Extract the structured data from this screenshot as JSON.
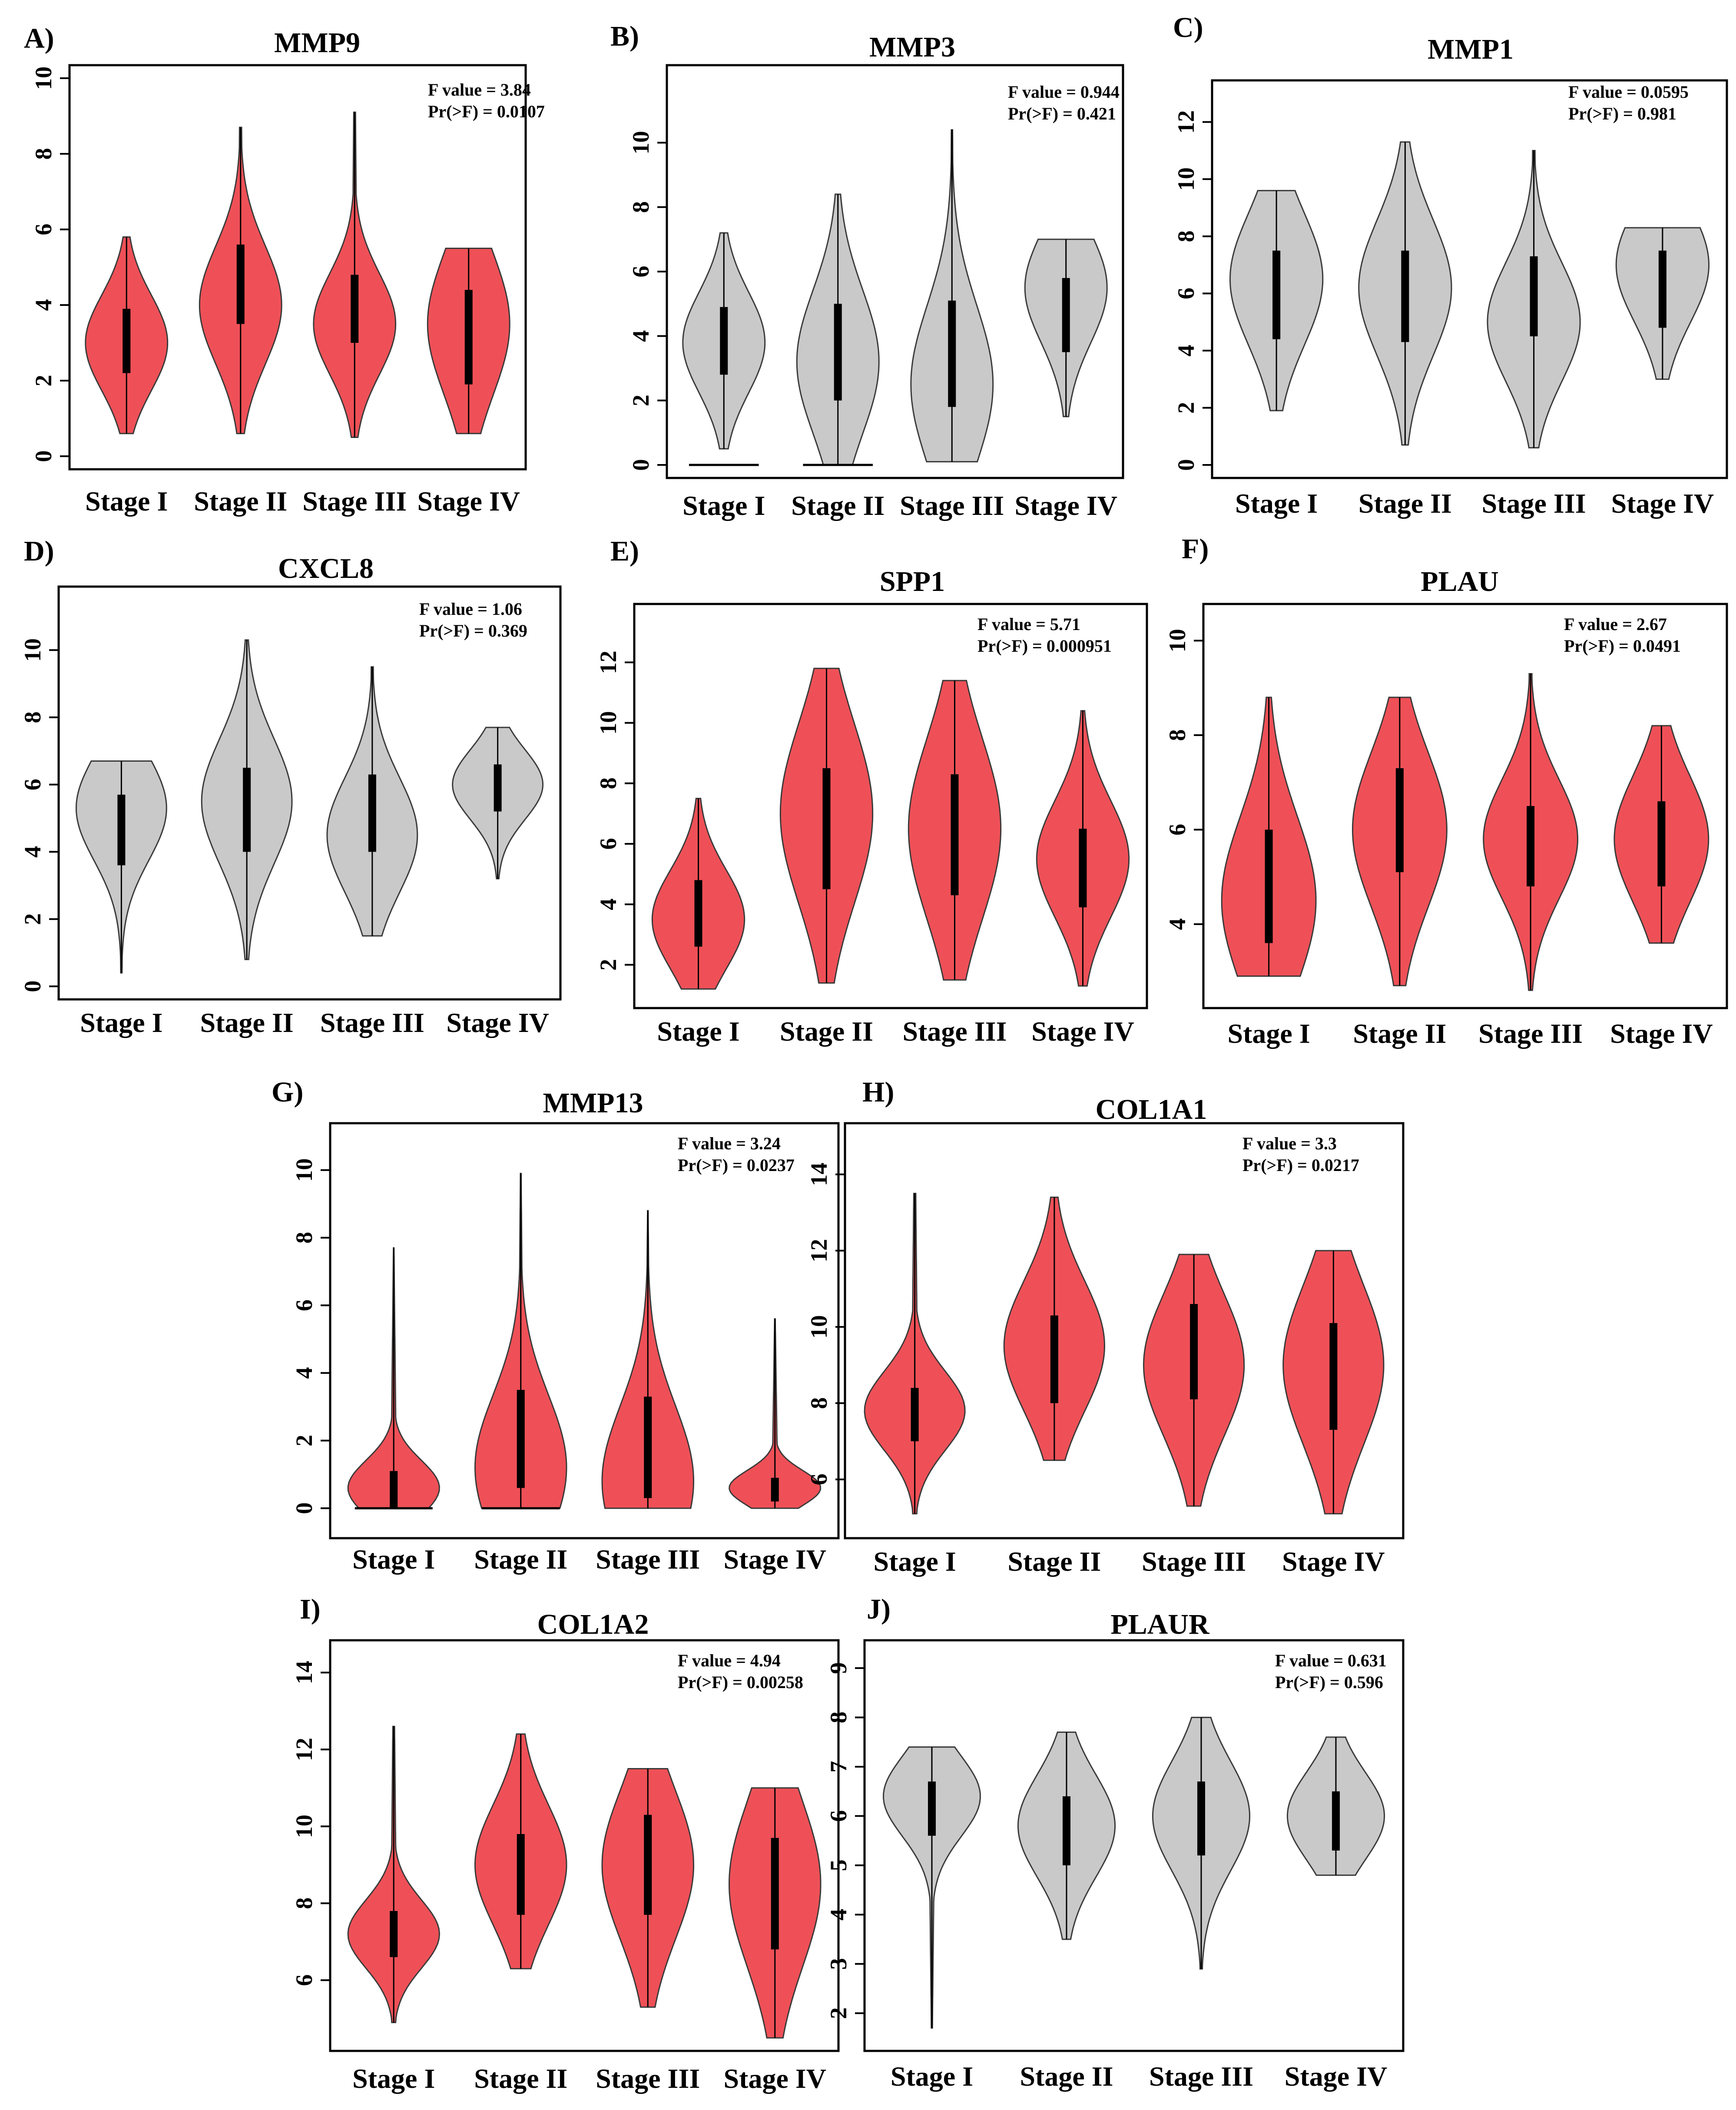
{
  "figure": {
    "colors": {
      "significant": "#ef5057",
      "nonsignificant": "#c9c9c9",
      "outline": "#3a3a3a",
      "box": "#000000"
    }
  },
  "chart_data": [
    {
      "letter": "A)",
      "type": "violin",
      "title": "MMP9",
      "categories": [
        "Stage I",
        "Stage II",
        "Stage III",
        "Stage IV"
      ],
      "ylim": [
        0,
        10
      ],
      "yticks": [
        0,
        2,
        4,
        6,
        8,
        10
      ],
      "ylabel": "",
      "xlabel": "",
      "grid": false,
      "stats": {
        "f_line": "F value = 3.84",
        "p_line": "Pr(>F)  = 0.0107"
      },
      "significant": true,
      "series": [
        {
          "name": "Stage I",
          "min": 0.6,
          "q1": 2.2,
          "median": 3.2,
          "q3": 3.9,
          "max": 5.8,
          "mode": 3.0
        },
        {
          "name": "Stage II",
          "min": 0.6,
          "q1": 3.5,
          "median": 4.5,
          "q3": 5.6,
          "max": 8.7,
          "mode": 4.0
        },
        {
          "name": "Stage III",
          "min": 0.5,
          "q1": 3.0,
          "median": 4.0,
          "q3": 4.8,
          "max": 9.1,
          "mode": 3.5
        },
        {
          "name": "Stage IV",
          "min": 0.6,
          "q1": 1.9,
          "median": 3.2,
          "q3": 4.4,
          "max": 5.5,
          "mode": 3.5
        }
      ]
    },
    {
      "letter": "B)",
      "type": "violin",
      "title": "MMP3",
      "categories": [
        "Stage I",
        "Stage II",
        "Stage III",
        "Stage IV"
      ],
      "ylim": [
        0,
        12
      ],
      "yticks": [
        0,
        2,
        4,
        6,
        8,
        10
      ],
      "ylabel": "",
      "xlabel": "",
      "grid": false,
      "stats": {
        "f_line": "F value = 0.944",
        "p_line": "Pr(>F)  = 0.421"
      },
      "significant": false,
      "series": [
        {
          "name": "Stage I",
          "min": 0.5,
          "q1": 2.8,
          "median": 4.0,
          "q3": 4.9,
          "max": 7.2,
          "mode": 3.8,
          "zeroline": true
        },
        {
          "name": "Stage II",
          "min": 0.0,
          "q1": 2.0,
          "median": 3.5,
          "q3": 5.0,
          "max": 8.4,
          "mode": 3.2,
          "zeroline": true
        },
        {
          "name": "Stage III",
          "min": 0.1,
          "q1": 1.8,
          "median": 3.5,
          "q3": 5.1,
          "max": 10.4,
          "mode": 2.5
        },
        {
          "name": "Stage IV",
          "min": 1.5,
          "q1": 3.5,
          "median": 4.8,
          "q3": 5.8,
          "max": 7.0,
          "mode": 5.5
        }
      ]
    },
    {
      "letter": "C)",
      "type": "violin",
      "title": "MMP1",
      "categories": [
        "Stage I",
        "Stage II",
        "Stage III",
        "Stage IV"
      ],
      "ylim": [
        0,
        13
      ],
      "yticks": [
        0,
        2,
        4,
        6,
        8,
        10,
        12
      ],
      "ylabel": "",
      "xlabel": "",
      "grid": false,
      "stats": {
        "f_line": "F value = 0.0595",
        "p_line": "Pr(>F)  = 0.981"
      },
      "significant": false,
      "series": [
        {
          "name": "Stage I",
          "min": 1.9,
          "q1": 4.4,
          "median": 6.0,
          "q3": 7.5,
          "max": 9.6,
          "mode": 6.5
        },
        {
          "name": "Stage II",
          "min": 0.7,
          "q1": 4.3,
          "median": 6.0,
          "q3": 7.5,
          "max": 11.3,
          "mode": 6.2
        },
        {
          "name": "Stage III",
          "min": 0.6,
          "q1": 4.5,
          "median": 5.9,
          "q3": 7.3,
          "max": 11.0,
          "mode": 5.0
        },
        {
          "name": "Stage IV",
          "min": 3.0,
          "q1": 4.8,
          "median": 6.1,
          "q3": 7.5,
          "max": 8.3,
          "mode": 7.0
        }
      ]
    },
    {
      "letter": "D)",
      "type": "violin",
      "title": "CXCL8",
      "categories": [
        "Stage I",
        "Stage II",
        "Stage III",
        "Stage IV"
      ],
      "ylim": [
        0,
        11.5
      ],
      "yticks": [
        0,
        2,
        4,
        6,
        8,
        10
      ],
      "ylabel": "",
      "xlabel": "",
      "grid": false,
      "stats": {
        "f_line": "F value = 1.06",
        "p_line": "Pr(>F)  = 0.369"
      },
      "significant": false,
      "series": [
        {
          "name": "Stage I",
          "min": 0.4,
          "q1": 3.6,
          "median": 4.7,
          "q3": 5.7,
          "max": 6.7,
          "mode": 5.3
        },
        {
          "name": "Stage II",
          "min": 0.8,
          "q1": 4.0,
          "median": 5.3,
          "q3": 6.5,
          "max": 10.3,
          "mode": 5.5
        },
        {
          "name": "Stage III",
          "min": 1.5,
          "q1": 4.0,
          "median": 5.2,
          "q3": 6.3,
          "max": 9.5,
          "mode": 4.5
        },
        {
          "name": "Stage IV",
          "min": 3.2,
          "q1": 5.2,
          "median": 5.9,
          "q3": 6.6,
          "max": 7.7,
          "mode": 6.0
        }
      ]
    },
    {
      "letter": "E)",
      "type": "violin",
      "title": "SPP1",
      "categories": [
        "Stage I",
        "Stage II",
        "Stage III",
        "Stage IV"
      ],
      "ylim": [
        1,
        13.5
      ],
      "yticks": [
        2,
        4,
        6,
        8,
        10,
        12
      ],
      "ylabel": "",
      "xlabel": "",
      "grid": false,
      "stats": {
        "f_line": "F value = 5.71",
        "p_line": "Pr(>F)  = 0.000951"
      },
      "significant": true,
      "series": [
        {
          "name": "Stage I",
          "min": 1.2,
          "q1": 2.6,
          "median": 3.6,
          "q3": 4.8,
          "max": 7.5,
          "mode": 3.5
        },
        {
          "name": "Stage II",
          "min": 1.4,
          "q1": 4.5,
          "median": 6.5,
          "q3": 8.5,
          "max": 11.8,
          "mode": 7.0
        },
        {
          "name": "Stage III",
          "min": 1.5,
          "q1": 4.3,
          "median": 6.2,
          "q3": 8.3,
          "max": 11.4,
          "mode": 6.5
        },
        {
          "name": "Stage IV",
          "min": 1.3,
          "q1": 3.9,
          "median": 5.2,
          "q3": 6.5,
          "max": 10.4,
          "mode": 5.5
        }
      ]
    },
    {
      "letter": "F)",
      "type": "violin",
      "title": "PLAU",
      "categories": [
        "Stage I",
        "Stage II",
        "Stage III",
        "Stage IV"
      ],
      "ylim": [
        2.5,
        10.5
      ],
      "yticks": [
        4,
        6,
        8,
        10
      ],
      "ylabel": "",
      "xlabel": "",
      "grid": false,
      "stats": {
        "f_line": "F value = 2.67",
        "p_line": "Pr(>F)  = 0.0491"
      },
      "significant": true,
      "series": [
        {
          "name": "Stage I",
          "min": 2.9,
          "q1": 3.6,
          "median": 4.7,
          "q3": 6.0,
          "max": 8.8,
          "mode": 4.5
        },
        {
          "name": "Stage II",
          "min": 2.7,
          "q1": 5.1,
          "median": 6.2,
          "q3": 7.3,
          "max": 8.8,
          "mode": 6.0
        },
        {
          "name": "Stage III",
          "min": 2.6,
          "q1": 4.8,
          "median": 5.7,
          "q3": 6.5,
          "max": 9.3,
          "mode": 5.8
        },
        {
          "name": "Stage IV",
          "min": 3.6,
          "q1": 4.8,
          "median": 5.7,
          "q3": 6.6,
          "max": 8.2,
          "mode": 5.8
        }
      ]
    },
    {
      "letter": "G)",
      "type": "violin",
      "title": "MMP13",
      "categories": [
        "Stage I",
        "Stage II",
        "Stage III",
        "Stage IV"
      ],
      "ylim": [
        -0.5,
        11
      ],
      "yticks": [
        0,
        2,
        4,
        6,
        8,
        10
      ],
      "ylabel": "",
      "xlabel": "",
      "grid": false,
      "stats": {
        "f_line": "F value = 3.24",
        "p_line": "Pr(>F)  = 0.0237"
      },
      "significant": true,
      "series": [
        {
          "name": "Stage I",
          "min": 0.0,
          "q1": 0.0,
          "median": 0.3,
          "q3": 1.1,
          "max": 7.7,
          "mode": 0.6,
          "zeroline": true
        },
        {
          "name": "Stage II",
          "min": 0.0,
          "q1": 0.6,
          "median": 1.8,
          "q3": 3.5,
          "max": 9.9,
          "mode": 1.2,
          "zeroline": true
        },
        {
          "name": "Stage III",
          "min": 0.0,
          "q1": 0.3,
          "median": 1.5,
          "q3": 3.3,
          "max": 8.8,
          "mode": 0.8
        },
        {
          "name": "Stage IV",
          "min": 0.0,
          "q1": 0.2,
          "median": 0.5,
          "q3": 0.9,
          "max": 5.6,
          "mode": 0.6
        }
      ]
    },
    {
      "letter": "H)",
      "type": "violin",
      "title": "COL1A1",
      "categories": [
        "Stage I",
        "Stage II",
        "Stage III",
        "Stage IV"
      ],
      "ylim": [
        4.8,
        15
      ],
      "yticks": [
        6,
        8,
        10,
        12,
        14
      ],
      "ylabel": "",
      "xlabel": "",
      "grid": false,
      "stats": {
        "f_line": "F value = 3.3",
        "p_line": "Pr(>F)  = 0.0217"
      },
      "significant": true,
      "series": [
        {
          "name": "Stage I",
          "min": 5.1,
          "q1": 7.0,
          "median": 7.8,
          "q3": 8.4,
          "max": 13.5,
          "mode": 7.8
        },
        {
          "name": "Stage II",
          "min": 6.5,
          "q1": 8.0,
          "median": 9.0,
          "q3": 10.3,
          "max": 13.4,
          "mode": 9.5
        },
        {
          "name": "Stage III",
          "min": 5.3,
          "q1": 8.1,
          "median": 9.3,
          "q3": 10.6,
          "max": 11.9,
          "mode": 9.0
        },
        {
          "name": "Stage IV",
          "min": 5.1,
          "q1": 7.3,
          "median": 8.6,
          "q3": 10.1,
          "max": 12.0,
          "mode": 9.0
        }
      ]
    },
    {
      "letter": "I)",
      "type": "violin",
      "title": "COL1A2",
      "categories": [
        "Stage I",
        "Stage II",
        "Stage III",
        "Stage IV"
      ],
      "ylim": [
        4.5,
        14.5
      ],
      "yticks": [
        6,
        8,
        10,
        12,
        14
      ],
      "ylabel": "",
      "xlabel": "",
      "grid": false,
      "stats": {
        "f_line": "F value = 4.94",
        "p_line": "Pr(>F)  = 0.00258"
      },
      "significant": true,
      "series": [
        {
          "name": "Stage I",
          "min": 4.9,
          "q1": 6.6,
          "median": 7.2,
          "q3": 7.8,
          "max": 12.6,
          "mode": 7.2
        },
        {
          "name": "Stage II",
          "min": 6.3,
          "q1": 7.7,
          "median": 8.8,
          "q3": 9.8,
          "max": 12.4,
          "mode": 9.0
        },
        {
          "name": "Stage III",
          "min": 5.3,
          "q1": 7.7,
          "median": 8.8,
          "q3": 10.3,
          "max": 11.5,
          "mode": 9.0
        },
        {
          "name": "Stage IV",
          "min": 4.5,
          "q1": 6.8,
          "median": 8.0,
          "q3": 9.7,
          "max": 11.0,
          "mode": 8.5
        }
      ]
    },
    {
      "letter": "J)",
      "type": "violin",
      "title": "PLAUR",
      "categories": [
        "Stage I",
        "Stage II",
        "Stage III",
        "Stage IV"
      ],
      "ylim": [
        1.5,
        9.3
      ],
      "yticks": [
        2,
        3,
        4,
        5,
        6,
        7,
        8,
        9
      ],
      "ylabel": "",
      "xlabel": "",
      "grid": false,
      "stats": {
        "f_line": "F value = 0.631",
        "p_line": "Pr(>F)  = 0.596"
      },
      "significant": false,
      "series": [
        {
          "name": "Stage I",
          "min": 1.7,
          "q1": 5.6,
          "median": 6.2,
          "q3": 6.7,
          "max": 7.4,
          "mode": 6.4
        },
        {
          "name": "Stage II",
          "min": 3.5,
          "q1": 5.0,
          "median": 5.7,
          "q3": 6.4,
          "max": 7.7,
          "mode": 5.8
        },
        {
          "name": "Stage III",
          "min": 2.9,
          "q1": 5.2,
          "median": 6.0,
          "q3": 6.7,
          "max": 8.0,
          "mode": 6.0
        },
        {
          "name": "Stage IV",
          "min": 4.8,
          "q1": 5.3,
          "median": 5.9,
          "q3": 6.5,
          "max": 7.6,
          "mode": 6.0
        }
      ]
    }
  ]
}
